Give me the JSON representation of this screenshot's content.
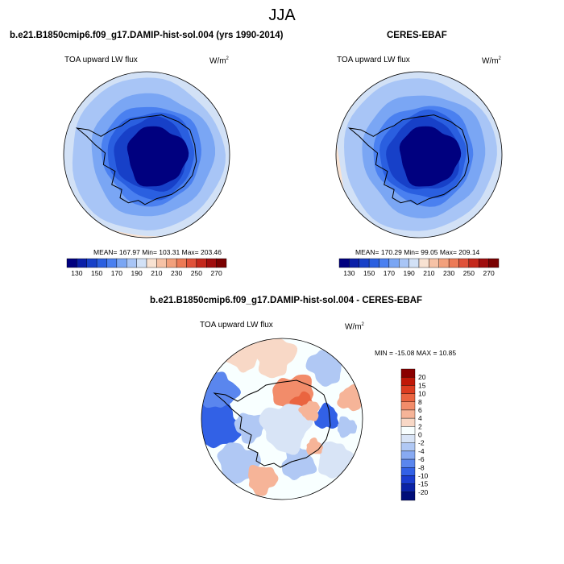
{
  "title": "JJA",
  "colors": {
    "abs_scale": [
      "#00007f",
      "#0a1fa8",
      "#1740c8",
      "#2a5fe0",
      "#4a80f0",
      "#7aa6f4",
      "#a8c5f6",
      "#d2e1f6",
      "#f8e2d2",
      "#f6c2a6",
      "#f2a07c",
      "#ec7a56",
      "#e0523a",
      "#c4281c",
      "#a00d0d",
      "#7a0000"
    ],
    "diff_scale": [
      "#000d78",
      "#0a22a6",
      "#1a3dd0",
      "#3261e6",
      "#5a86ee",
      "#88aaf2",
      "#b0c8f4",
      "#d8e4f6",
      "#f8ffff",
      "#f8d8c6",
      "#f6b498",
      "#f28c6a",
      "#ea6440",
      "#dc3c20",
      "#c01808",
      "#8a0000"
    ]
  },
  "panels": [
    {
      "title": "b.e21.B1850cmip6.f09_g17.DAMIP-hist-sol.004 (yrs 1990-2014)",
      "var_label": "TOA upward LW flux",
      "units": "W/m",
      "units_exp": "2",
      "stats": "MEAN= 167.97  Min= 103.31  Max= 203.46"
    },
    {
      "title": "CERES-EBAF",
      "var_label": "TOA upward LW flux",
      "units": "W/m",
      "units_exp": "2",
      "stats": "MEAN= 170.29  Min=  99.05  Max= 209.14"
    },
    {
      "title": "b.e21.B1850cmip6.f09_g17.DAMIP-hist-sol.004 - CERES-EBAF",
      "var_label": "TOA upward LW flux",
      "units": "W/m",
      "units_exp": "2",
      "stats": "MIN = -15.08 MAX =  10.85"
    }
  ],
  "chart_data": [
    {
      "type": "heatmap",
      "projection": "south-polar-stereographic",
      "title": "b.e21.B1850cmip6.f09_g17.DAMIP-hist-sol.004 (yrs 1990-2014)",
      "variable": "TOA upward LW flux",
      "units": "W/m2",
      "mean": 167.97,
      "min": 103.31,
      "max": 203.46,
      "colorbar_ticks": [
        "130",
        "150",
        "170",
        "190",
        "210",
        "230",
        "250",
        "270"
      ],
      "colorbar_levels": [
        120,
        130,
        140,
        150,
        160,
        170,
        180,
        190,
        200,
        210,
        220,
        230,
        240,
        250,
        260,
        270
      ]
    },
    {
      "type": "heatmap",
      "projection": "south-polar-stereographic",
      "title": "CERES-EBAF",
      "variable": "TOA upward LW flux",
      "units": "W/m2",
      "mean": 170.29,
      "min": 99.05,
      "max": 209.14,
      "colorbar_ticks": [
        "130",
        "150",
        "170",
        "190",
        "210",
        "230",
        "250",
        "270"
      ],
      "colorbar_levels": [
        120,
        130,
        140,
        150,
        160,
        170,
        180,
        190,
        200,
        210,
        220,
        230,
        240,
        250,
        260,
        270
      ]
    },
    {
      "type": "heatmap",
      "projection": "south-polar-stereographic",
      "title": "b.e21.B1850cmip6.f09_g17.DAMIP-hist-sol.004 - CERES-EBAF",
      "variable": "TOA upward LW flux",
      "units": "W/m2",
      "min": -15.08,
      "max": 10.85,
      "colorbar_ticks": [
        "20",
        "15",
        "10",
        "8",
        "6",
        "4",
        "2",
        "0",
        "-2",
        "-4",
        "-6",
        "-8",
        "-10",
        "-15",
        "-20"
      ]
    }
  ]
}
